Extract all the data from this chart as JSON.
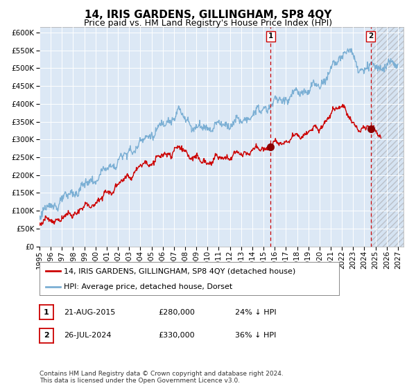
{
  "title": "14, IRIS GARDENS, GILLINGHAM, SP8 4QY",
  "subtitle": "Price paid vs. HM Land Registry's House Price Index (HPI)",
  "ytick_values": [
    0,
    50000,
    100000,
    150000,
    200000,
    250000,
    300000,
    350000,
    400000,
    450000,
    500000,
    550000,
    600000
  ],
  "ylim": [
    0,
    615000
  ],
  "xlim_start": 1995,
  "xlim_end": 2027.5,
  "hpi_color": "#7bafd4",
  "sale_color": "#cc0000",
  "dashed_color": "#cc0000",
  "background_color": "#dce8f5",
  "grid_color": "#ffffff",
  "legend_label_sale": "14, IRIS GARDENS, GILLINGHAM, SP8 4QY (detached house)",
  "legend_label_hpi": "HPI: Average price, detached house, Dorset",
  "sale1_date": "21-AUG-2015",
  "sale1_price": 280000,
  "sale1_note": "24% ↓ HPI",
  "sale1_year": 2015.64,
  "sale2_date": "26-JUL-2024",
  "sale2_price": 330000,
  "sale2_note": "36% ↓ HPI",
  "sale2_year": 2024.56,
  "footer": "Contains HM Land Registry data © Crown copyright and database right 2024.\nThis data is licensed under the Open Government Licence v3.0.",
  "title_fontsize": 11,
  "subtitle_fontsize": 9,
  "tick_fontsize": 7.5,
  "legend_fontsize": 8,
  "footer_fontsize": 6.5
}
